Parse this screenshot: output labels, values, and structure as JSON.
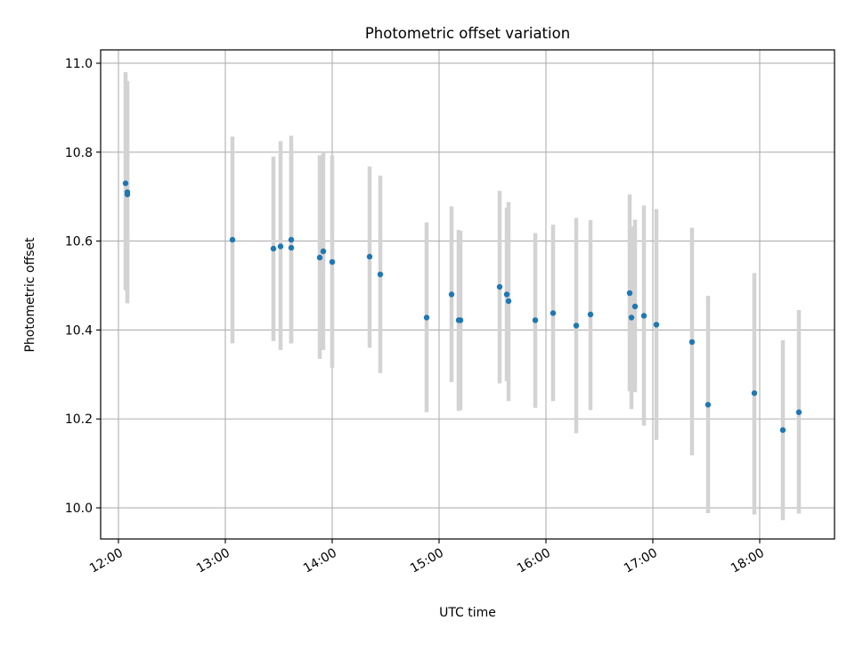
{
  "chart_data": {
    "type": "scatter",
    "title": "Photometric offset variation",
    "xlabel": "UTC time",
    "ylabel": "Photometric offset",
    "x_axis_type": "time",
    "xlim": [
      "11:50",
      "18:42"
    ],
    "ylim": [
      9.93,
      11.03
    ],
    "x_ticks": [
      "12:00",
      "13:00",
      "14:00",
      "15:00",
      "16:00",
      "17:00",
      "18:00"
    ],
    "y_ticks": [
      "10.0",
      "10.2",
      "10.4",
      "10.6",
      "10.8",
      "11.0"
    ],
    "grid": true,
    "legend": "none",
    "colors": {
      "point": "#1f77b4",
      "errorbar": "#d3d3d3",
      "grid": "#b0b0b0"
    },
    "series": [
      {
        "points": [
          {
            "x": "12:04",
            "y": 10.73,
            "ylow": 10.49,
            "yhigh": 10.98
          },
          {
            "x": "12:05",
            "y": 10.71,
            "ylow": 10.47,
            "yhigh": 10.96
          },
          {
            "x": "12:05",
            "y": 10.705,
            "ylow": 10.46,
            "yhigh": 10.95
          },
          {
            "x": "13:04",
            "y": 10.603,
            "ylow": 10.37,
            "yhigh": 10.835
          },
          {
            "x": "13:27",
            "y": 10.583,
            "ylow": 10.375,
            "yhigh": 10.79
          },
          {
            "x": "13:31",
            "y": 10.588,
            "ylow": 10.355,
            "yhigh": 10.825
          },
          {
            "x": "13:37",
            "y": 10.603,
            "ylow": 10.37,
            "yhigh": 10.837
          },
          {
            "x": "13:37",
            "y": 10.585,
            "ylow": 10.37,
            "yhigh": 10.8
          },
          {
            "x": "13:53",
            "y": 10.563,
            "ylow": 10.335,
            "yhigh": 10.793
          },
          {
            "x": "13:55",
            "y": 10.577,
            "ylow": 10.355,
            "yhigh": 10.8
          },
          {
            "x": "14:00",
            "y": 10.553,
            "ylow": 10.315,
            "yhigh": 10.793
          },
          {
            "x": "14:21",
            "y": 10.565,
            "ylow": 10.36,
            "yhigh": 10.768
          },
          {
            "x": "14:27",
            "y": 10.525,
            "ylow": 10.303,
            "yhigh": 10.747
          },
          {
            "x": "14:53",
            "y": 10.428,
            "ylow": 10.215,
            "yhigh": 10.642
          },
          {
            "x": "15:07",
            "y": 10.48,
            "ylow": 10.283,
            "yhigh": 10.678
          },
          {
            "x": "15:11",
            "y": 10.422,
            "ylow": 10.218,
            "yhigh": 10.625
          },
          {
            "x": "15:12",
            "y": 10.422,
            "ylow": 10.22,
            "yhigh": 10.623
          },
          {
            "x": "15:34",
            "y": 10.497,
            "ylow": 10.28,
            "yhigh": 10.713
          },
          {
            "x": "15:38",
            "y": 10.48,
            "ylow": 10.285,
            "yhigh": 10.675
          },
          {
            "x": "15:39",
            "y": 10.465,
            "ylow": 10.24,
            "yhigh": 10.688
          },
          {
            "x": "15:54",
            "y": 10.422,
            "ylow": 10.225,
            "yhigh": 10.618
          },
          {
            "x": "16:04",
            "y": 10.438,
            "ylow": 10.24,
            "yhigh": 10.637
          },
          {
            "x": "16:17",
            "y": 10.41,
            "ylow": 10.168,
            "yhigh": 10.652
          },
          {
            "x": "16:25",
            "y": 10.435,
            "ylow": 10.22,
            "yhigh": 10.647
          },
          {
            "x": "16:47",
            "y": 10.483,
            "ylow": 10.262,
            "yhigh": 10.705
          },
          {
            "x": "16:48",
            "y": 10.428,
            "ylow": 10.222,
            "yhigh": 10.633
          },
          {
            "x": "16:50",
            "y": 10.453,
            "ylow": 10.26,
            "yhigh": 10.648
          },
          {
            "x": "16:55",
            "y": 10.432,
            "ylow": 10.185,
            "yhigh": 10.68
          },
          {
            "x": "17:02",
            "y": 10.412,
            "ylow": 10.153,
            "yhigh": 10.672
          },
          {
            "x": "17:22",
            "y": 10.373,
            "ylow": 10.118,
            "yhigh": 10.63
          },
          {
            "x": "17:31",
            "y": 10.232,
            "ylow": 9.988,
            "yhigh": 10.477
          },
          {
            "x": "17:57",
            "y": 10.258,
            "ylow": 9.985,
            "yhigh": 10.528
          },
          {
            "x": "18:13",
            "y": 10.175,
            "ylow": 9.972,
            "yhigh": 10.377
          },
          {
            "x": "18:22",
            "y": 10.215,
            "ylow": 9.987,
            "yhigh": 10.445
          }
        ]
      }
    ]
  }
}
